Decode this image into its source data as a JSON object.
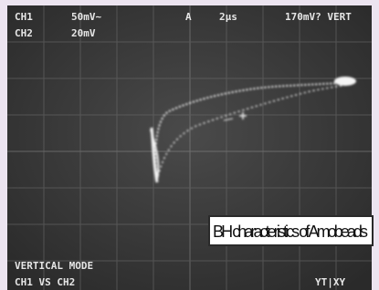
{
  "screen": {
    "top_left": {
      "ch1_label": "CH1",
      "ch1_scale": "50mV~",
      "ch2_label": "CH2",
      "ch2_scale": "20mV"
    },
    "top_right": {
      "trigger": "A",
      "timebase": "2µs",
      "level": "170mV? VERT"
    },
    "caption": "BH characteristics of Amobeads",
    "bottom_left": {
      "mode_title": "VERTICAL MODE",
      "mode": "CH1 VS CH2"
    },
    "bottom_right": {
      "display": "YT|XY"
    }
  }
}
